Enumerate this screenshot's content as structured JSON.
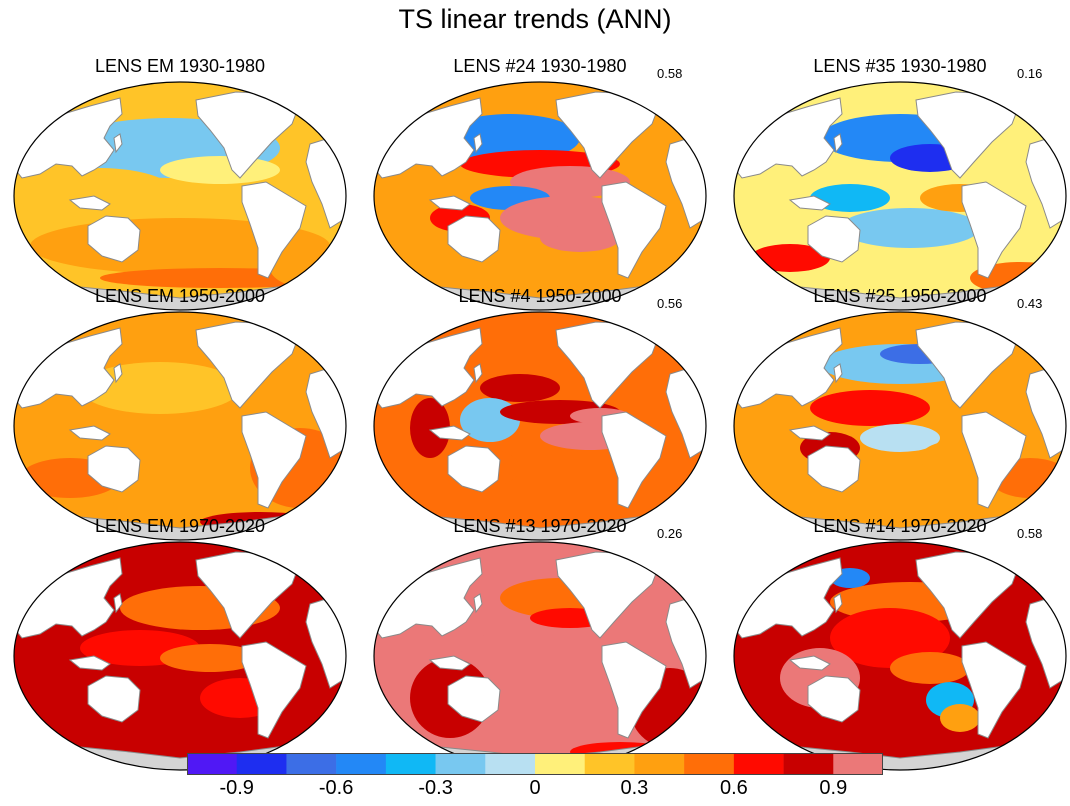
{
  "figure": {
    "title": "TS linear trends (ANN)"
  },
  "chart_data": {
    "type": "map-grid",
    "title": "TS linear trends (ANN)",
    "variable": "TS",
    "season": "ANN",
    "panels": [
      {
        "title": "LENS EM 1930-1980",
        "member": "EM",
        "period": "1930-1980",
        "corr": null,
        "pattern": "em_early"
      },
      {
        "title": "LENS #24 1930-1980",
        "member": "#24",
        "period": "1930-1980",
        "corr": "0.58",
        "pattern": "enso_warm"
      },
      {
        "title": "LENS #35 1930-1980",
        "member": "#35",
        "period": "1930-1980",
        "corr": "0.16",
        "pattern": "pdo_cool"
      },
      {
        "title": "LENS EM 1950-2000",
        "member": "EM",
        "period": "1950-2000",
        "corr": null,
        "pattern": "em_mid"
      },
      {
        "title": "LENS #4 1950-2000",
        "member": "#4",
        "period": "1950-2000",
        "corr": "0.56",
        "pattern": "enso_warm_mid"
      },
      {
        "title": "LENS #25 1950-2000",
        "member": "#25",
        "period": "1950-2000",
        "corr": "0.43",
        "pattern": "pdo_cool_mid"
      },
      {
        "title": "LENS EM 1970-2020",
        "member": "EM",
        "period": "1970-2020",
        "corr": null,
        "pattern": "em_late"
      },
      {
        "title": "LENS #13 1970-2020",
        "member": "#13",
        "period": "1970-2020",
        "corr": "0.26",
        "pattern": "late_hot"
      },
      {
        "title": "LENS #14 1970-2020",
        "member": "#14",
        "period": "1970-2020",
        "corr": "0.58",
        "pattern": "late_mixed"
      }
    ],
    "colorbar": {
      "levels": [
        -1.05,
        -0.9,
        -0.75,
        -0.6,
        -0.45,
        -0.3,
        -0.15,
        0,
        0.15,
        0.3,
        0.45,
        0.6,
        0.75,
        0.9,
        1.05
      ],
      "colors": [
        "#5018f5",
        "#1e2ef0",
        "#3c6ee6",
        "#2388f6",
        "#10b8f5",
        "#78c8f0",
        "#b8e0f2",
        "#fff07a",
        "#ffc428",
        "#ffa010",
        "#ff6e08",
        "#ff0a00",
        "#c80000",
        "#eb7878"
      ],
      "tick_labels": [
        "-0.9",
        "-0.6",
        "-0.3",
        "0",
        "0.3",
        "0.6",
        "0.9"
      ],
      "tick_values": [
        -0.9,
        -0.6,
        -0.3,
        0,
        0.3,
        0.6,
        0.9
      ]
    }
  }
}
